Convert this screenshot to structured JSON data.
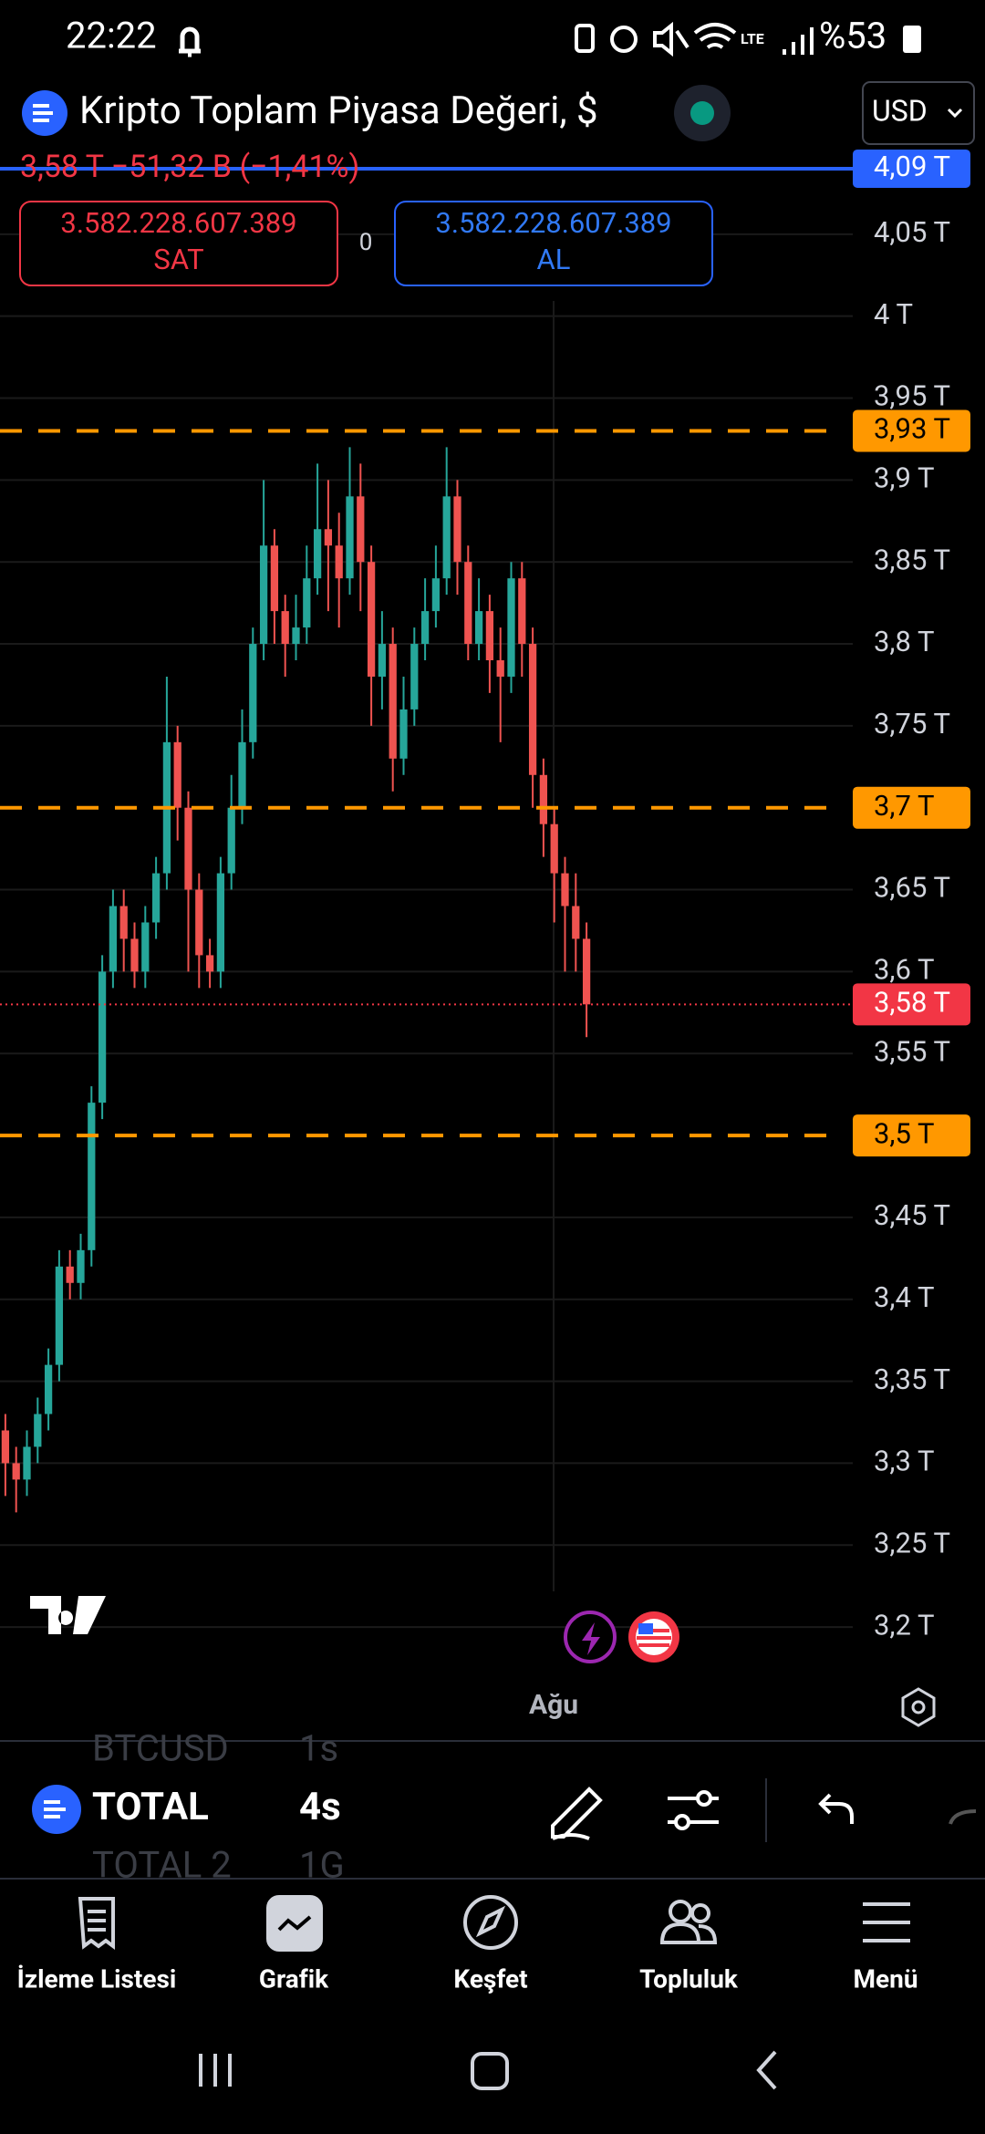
{
  "status_bar": {
    "time": "22:22",
    "battery": "%53"
  },
  "header": {
    "title": "Kripto Toplam Piyasa Değeri, $",
    "currency": "USD"
  },
  "quote": {
    "text": "3,58 T  −51,32 B (−1,41%)"
  },
  "trade": {
    "sell_price": "3.582.228.607.389",
    "sell_label": "SAT",
    "spread": "0",
    "buy_price": "3.582.228.607.389",
    "buy_label": "AL"
  },
  "chart_data": {
    "type": "candlestick",
    "up_color": "#26a69a",
    "down_color": "#ef5350",
    "ylim": [
      3.17,
      4.1
    ],
    "yticks": [
      {
        "value": 4.05,
        "label": "4,05 T"
      },
      {
        "value": 4,
        "label": "4 T"
      },
      {
        "value": 3.95,
        "label": "3,95 T"
      },
      {
        "value": 3.9,
        "label": "3,9 T"
      },
      {
        "value": 3.85,
        "label": "3,85 T"
      },
      {
        "value": 3.8,
        "label": "3,8 T"
      },
      {
        "value": 3.75,
        "label": "3,75 T"
      },
      {
        "value": 3.65,
        "label": "3,65 T"
      },
      {
        "value": 3.6,
        "label": "3,6 T"
      },
      {
        "value": 3.55,
        "label": "3,55 T"
      },
      {
        "value": 3.45,
        "label": "3,45 T"
      },
      {
        "value": 3.4,
        "label": "3,4 T"
      },
      {
        "value": 3.35,
        "label": "3,35 T"
      },
      {
        "value": 3.3,
        "label": "3,3 T"
      },
      {
        "value": 3.25,
        "label": "3,25 T"
      },
      {
        "value": 3.2,
        "label": "3,2 T"
      }
    ],
    "levels": [
      {
        "value": 3.93,
        "label": "3,93 T",
        "color": "#ff9800"
      },
      {
        "value": 3.7,
        "label": "3,7 T",
        "color": "#ff9800"
      },
      {
        "value": 3.5,
        "label": "3,5 T",
        "color": "#ff9800"
      }
    ],
    "price_line": {
      "value": 3.58,
      "label": "3,58 T",
      "color": "#f23645"
    },
    "top_line": {
      "value": 4.09,
      "label": "4,09 T",
      "color": "#2962ff"
    },
    "x_label": "Ağu",
    "ohlc": [
      [
        3.32,
        3.33,
        3.28,
        3.3
      ],
      [
        3.3,
        3.31,
        3.27,
        3.29
      ],
      [
        3.29,
        3.32,
        3.28,
        3.31
      ],
      [
        3.31,
        3.34,
        3.3,
        3.33
      ],
      [
        3.33,
        3.37,
        3.32,
        3.36
      ],
      [
        3.36,
        3.43,
        3.35,
        3.42
      ],
      [
        3.42,
        3.43,
        3.4,
        3.41
      ],
      [
        3.41,
        3.44,
        3.4,
        3.43
      ],
      [
        3.43,
        3.53,
        3.42,
        3.52
      ],
      [
        3.52,
        3.61,
        3.51,
        3.6
      ],
      [
        3.6,
        3.65,
        3.59,
        3.64
      ],
      [
        3.64,
        3.65,
        3.6,
        3.62
      ],
      [
        3.62,
        3.63,
        3.59,
        3.6
      ],
      [
        3.6,
        3.64,
        3.59,
        3.63
      ],
      [
        3.63,
        3.67,
        3.62,
        3.66
      ],
      [
        3.66,
        3.78,
        3.65,
        3.74
      ],
      [
        3.74,
        3.75,
        3.68,
        3.7
      ],
      [
        3.7,
        3.71,
        3.6,
        3.65
      ],
      [
        3.65,
        3.66,
        3.59,
        3.61
      ],
      [
        3.61,
        3.62,
        3.59,
        3.6
      ],
      [
        3.6,
        3.67,
        3.59,
        3.66
      ],
      [
        3.66,
        3.72,
        3.65,
        3.7
      ],
      [
        3.7,
        3.76,
        3.69,
        3.74
      ],
      [
        3.74,
        3.81,
        3.73,
        3.8
      ],
      [
        3.8,
        3.9,
        3.79,
        3.86
      ],
      [
        3.86,
        3.87,
        3.8,
        3.82
      ],
      [
        3.82,
        3.83,
        3.78,
        3.8
      ],
      [
        3.8,
        3.83,
        3.79,
        3.81
      ],
      [
        3.81,
        3.86,
        3.8,
        3.84
      ],
      [
        3.84,
        3.91,
        3.83,
        3.87
      ],
      [
        3.87,
        3.9,
        3.82,
        3.86
      ],
      [
        3.86,
        3.88,
        3.81,
        3.84
      ],
      [
        3.84,
        3.92,
        3.83,
        3.89
      ],
      [
        3.89,
        3.91,
        3.82,
        3.85
      ],
      [
        3.85,
        3.86,
        3.75,
        3.78
      ],
      [
        3.78,
        3.82,
        3.76,
        3.8
      ],
      [
        3.8,
        3.81,
        3.71,
        3.73
      ],
      [
        3.73,
        3.78,
        3.72,
        3.76
      ],
      [
        3.76,
        3.81,
        3.75,
        3.8
      ],
      [
        3.8,
        3.84,
        3.79,
        3.82
      ],
      [
        3.82,
        3.86,
        3.81,
        3.84
      ],
      [
        3.84,
        3.92,
        3.83,
        3.89
      ],
      [
        3.89,
        3.9,
        3.83,
        3.85
      ],
      [
        3.85,
        3.86,
        3.79,
        3.8
      ],
      [
        3.8,
        3.84,
        3.79,
        3.82
      ],
      [
        3.82,
        3.83,
        3.77,
        3.79
      ],
      [
        3.79,
        3.81,
        3.74,
        3.78
      ],
      [
        3.78,
        3.85,
        3.77,
        3.84
      ],
      [
        3.84,
        3.85,
        3.78,
        3.8
      ],
      [
        3.8,
        3.81,
        3.7,
        3.72
      ],
      [
        3.72,
        3.73,
        3.67,
        3.69
      ],
      [
        3.69,
        3.7,
        3.63,
        3.66
      ],
      [
        3.66,
        3.67,
        3.6,
        3.64
      ],
      [
        3.64,
        3.66,
        3.6,
        3.62
      ],
      [
        3.62,
        3.63,
        3.56,
        3.58
      ]
    ]
  },
  "symbol_bar": {
    "prev_symbol": "BTCUSD",
    "prev_interval": "1s",
    "symbol": "TOTAL",
    "interval": "4s",
    "next_symbol": "TOTAL 2",
    "next_interval": "1G"
  },
  "nav": {
    "items": [
      "İzleme Listesi",
      "Grafik",
      "Keşfet",
      "Topluluk",
      "Menü"
    ]
  }
}
